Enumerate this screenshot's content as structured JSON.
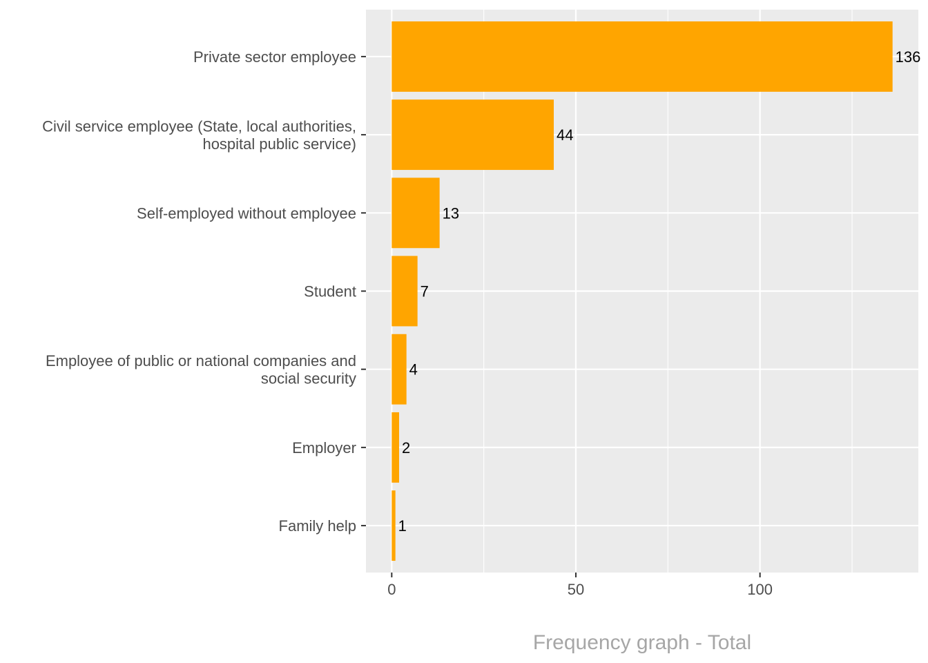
{
  "chart_data": {
    "type": "bar",
    "orientation": "horizontal",
    "categories": [
      "Private sector employee",
      "Civil service employee (State, local authorities,\nhospital public service)",
      "Self-employed without employee",
      "Student",
      "Employee of public or national companies and\nsocial security",
      "Employer",
      "Family help"
    ],
    "values": [
      136,
      44,
      13,
      7,
      4,
      2,
      1
    ],
    "data_labels": [
      "136",
      "44",
      "13",
      "7",
      "4",
      "2",
      "1"
    ],
    "xlabel": "Frequency graph - Total",
    "ylabel": "",
    "xlim": [
      -7,
      143
    ],
    "x_ticks": [
      0,
      50,
      100
    ],
    "x_tick_labels": [
      "0",
      "50",
      "100"
    ],
    "minor_gridlines": [
      25,
      75,
      125
    ],
    "grid": true,
    "legend": "none",
    "colors": {
      "bar": "#ffa500",
      "panel": "#ebebeb",
      "grid": "#ffffff",
      "text": "#4d4d4d",
      "title": "#a6a6a6"
    }
  }
}
